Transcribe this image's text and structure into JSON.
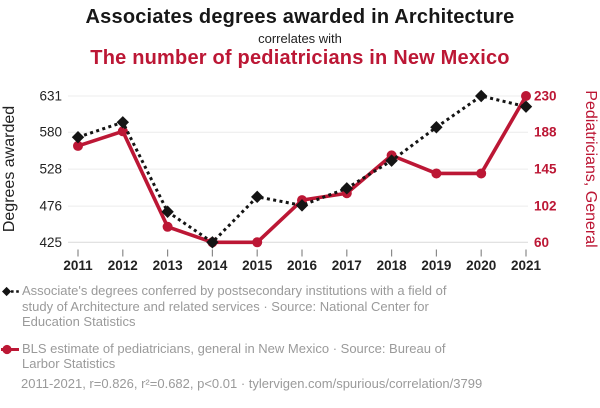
{
  "colors": {
    "accent_red": "#bc1735",
    "series_black": "#141414",
    "legend_gray": "#9a9a9a",
    "gridline": "#ececec"
  },
  "chart_data": {
    "type": "line",
    "title": "Associates degrees awarded in Architecture",
    "subtitle": "correlates with",
    "secondary_title": "The number of pediatricians in New Mexico",
    "x": [
      2011,
      2012,
      2013,
      2014,
      2015,
      2016,
      2017,
      2018,
      2019,
      2020,
      2021
    ],
    "series": [
      {
        "name": "Associates degrees awarded in Architecture",
        "axis": "left",
        "color": "#141414",
        "line_style": "dashed",
        "marker": "diamond",
        "values": [
          573,
          594,
          468,
          425,
          489,
          477,
          501,
          540,
          587,
          631,
          616
        ],
        "legend": "Associate's degrees conferred by postsecondary institutions with a field of\nstudy of Architecture and related services · Source: National Center for\nEducation Statistics"
      },
      {
        "name": "Pediatricians in New Mexico",
        "axis": "right",
        "color": "#bc1735",
        "line_style": "solid",
        "marker": "circle",
        "values": [
          172,
          189,
          78,
          60,
          60,
          109,
          117,
          161,
          140,
          140,
          230
        ],
        "legend": "BLS estimate of pediatricians, general in New Mexico · Source: Bureau of\nLarbor Statistics"
      }
    ],
    "left_axis": {
      "label": "Degrees awarded",
      "ticks": [
        425,
        476,
        528,
        580,
        631
      ],
      "range": [
        425,
        631
      ]
    },
    "right_axis": {
      "label": "Pediatricians, General",
      "ticks": [
        60,
        102,
        145,
        188,
        230
      ],
      "range": [
        60,
        230
      ]
    },
    "grid": true,
    "legend_position": "bottom"
  },
  "footer": {
    "text": "2011-2021, r=0.826, r²=0.682, p<0.01 · tylervigen.com/spurious/correlation/3799"
  }
}
